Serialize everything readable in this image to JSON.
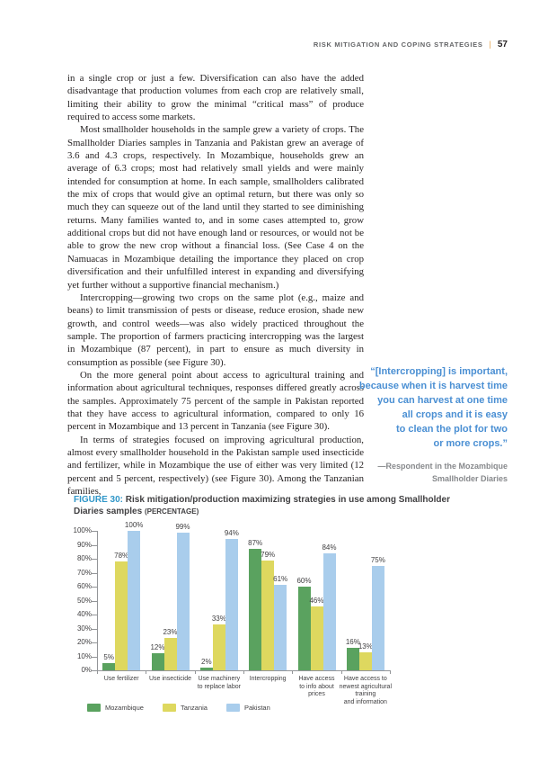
{
  "header": {
    "section": "RISK MITIGATION AND COPING STRATEGIES",
    "divider": "|",
    "page_number": "57"
  },
  "body": {
    "paragraphs": [
      "in a single crop or just a few. Diversification can also have the added disadvantage that production volumes from each crop are relatively small, limiting their ability to grow the minimal “critical mass” of produce required to access some markets.",
      "Most smallholder households in the sample grew a variety of crops. The Smallholder Diaries samples in Tanzania and Pakistan grew an average of 3.6 and 4.3 crops, respectively. In Mozambique, households grew an average of 6.3 crops; most had relatively small yields and were mainly intended for consumption at home. In each sample, smallholders calibrated the mix of crops that would give an optimal return, but there was only so much they can squeeze out of the land until they started to see diminishing returns. Many families wanted to, and in some cases attempted to, grow additional crops but did not have enough land or resources, or would not be able to grow the new crop without a financial loss. (See Case 4 on the Namuacas in Mozambique detailing the importance they placed on crop diversification and their unfulfilled interest in expanding and diversifying yet further without a supportive financial mechanism.)",
      "Intercropping—growing two crops on the same plot (e.g., maize and beans) to limit transmission of pests or disease, reduce erosion, shade new growth, and control weeds—was also widely practiced throughout the sample. The proportion of farmers practicing intercropping was the largest in Mozambique (87 percent), in part to ensure as much diversity in consumption as possible (see Figure 30).",
      "On the more general point about access to agricultural training and information about agricultural techniques, responses differed greatly across the samples. Approximately 75 percent of the sample in Pakistan reported that they have access to agricultural information, compared to only 16 percent in Mozambique and 13 percent in Tanzania (see Figure 30).",
      "In terms of strategies focused on improving agricultural production, almost every smallholder household in the Pakistan sample used insecticide and fertilizer, while in Mozambique the use of either was very limited (12 percent and 5 percent, respectively) (see Figure 30). Among the Tanzanian families,"
    ]
  },
  "pull_quote": {
    "text": "“[Intercropping] is important,\nbecause when it is harvest time\nyou can harvest at one time\nall crops and it is easy\nto clean the plot for two\nor more crops.”",
    "attribution": "—Respondent in the Mozambique\nSmallholder Diaries",
    "text_color": "#4a8fd3"
  },
  "figure": {
    "label": "FIGURE 30:",
    "title": " Risk mitigation/production maximizing strategies in use among Smallholder Diaries samples ",
    "title_suffix": "(PERCENTAGE)",
    "label_color": "#2f96c8"
  },
  "chart_data": {
    "type": "bar",
    "title": "Risk mitigation/production maximizing strategies in use among Smallholder Diaries samples (PERCENTAGE)",
    "categories": [
      "Use fertilizer",
      "Use insecticide",
      "Use machinery\nto replace labor",
      "Intercropping",
      "Have access\nto info about\nprices",
      "Have access to\nnewest agricultural\ntraining\nand information"
    ],
    "series": [
      {
        "name": "Mozambique",
        "color": "#5aa25f",
        "values": [
          5,
          12,
          2,
          87,
          60,
          16
        ]
      },
      {
        "name": "Tanzania",
        "color": "#ded85f",
        "values": [
          78,
          23,
          33,
          79,
          46,
          13
        ]
      },
      {
        "name": "Pakistan",
        "color": "#a9cdec",
        "values": [
          100,
          99,
          94,
          61,
          84,
          75
        ]
      }
    ],
    "xlabel": "",
    "ylabel": "",
    "ylim": [
      0,
      100
    ],
    "ytick_step": 10,
    "ytick_suffix": "%",
    "value_suffix": "%",
    "grid": false,
    "legend_position": "bottom"
  }
}
